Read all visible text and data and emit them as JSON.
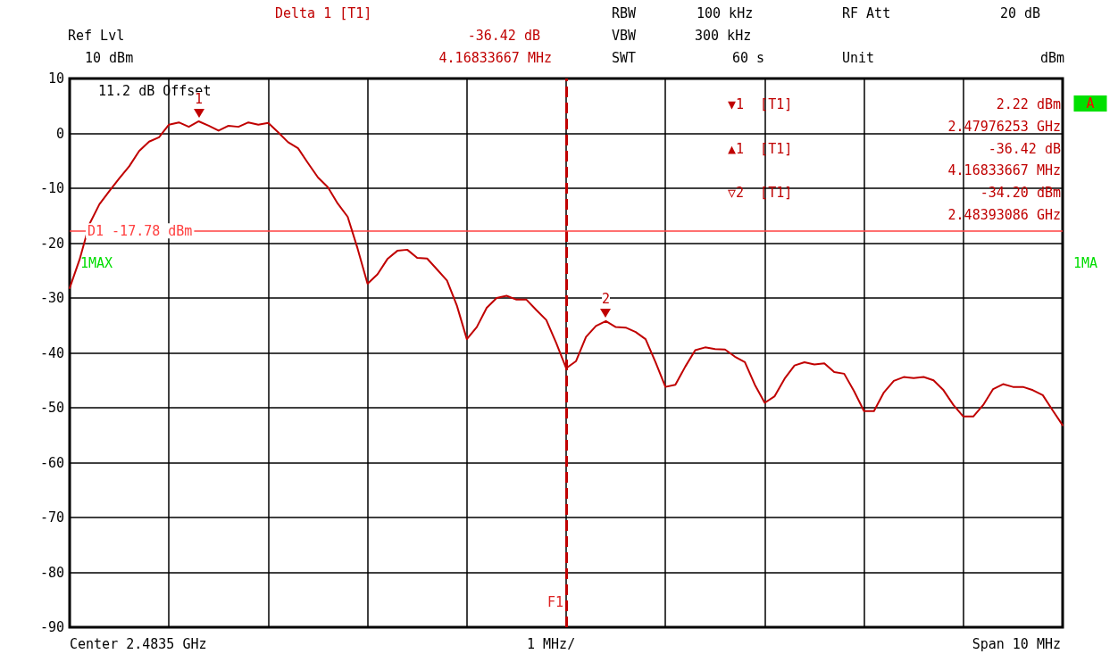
{
  "chart_data": {
    "type": "line",
    "annotations": [
      "Delta 1 [T1]",
      "-36.42 dB",
      "4.16833667 MHz",
      "RBW",
      "100 kHz",
      "RF Att",
      "20 dB",
      "Ref Lvl",
      "10 dBm",
      "VBW",
      "300 kHz",
      "SWT",
      "60 s",
      "Unit",
      "dBm",
      "11.2 dB Offset",
      "▼1  [T1]",
      "2.22 dBm",
      "2.47976253 GHz",
      "▲1  [T1]",
      "-36.42 dB",
      "4.16833667 MHz",
      "▽2  [T1]",
      "-34.20 dBm",
      "2.48393086 GHz",
      "1MAX",
      "1MA",
      "A",
      "Center 2.4835 GHz",
      "1 MHz/",
      "Span 10 MHz",
      "F1",
      {
        "text": "1",
        "y": 2.22
      },
      {
        "text": "2",
        "y": -34.2
      }
    ],
    "categories": [
      null,
      null,
      null,
      null,
      null,
      null,
      null,
      null,
      null,
      null,
      null,
      null,
      null,
      null,
      null,
      null,
      null,
      null,
      null,
      null,
      null,
      null,
      null,
      null,
      null,
      null,
      null,
      null,
      null,
      null,
      null,
      null,
      null,
      null,
      null,
      null,
      null,
      null,
      null,
      null,
      null,
      null,
      null,
      null,
      null,
      null,
      null,
      null,
      null,
      null,
      null,
      null,
      null,
      null,
      null,
      null,
      null,
      null,
      null,
      null,
      null,
      null,
      null,
      null,
      null,
      null,
      null,
      null,
      null,
      null,
      null,
      null,
      null,
      null,
      null,
      null,
      null,
      null,
      null,
      null,
      null,
      null,
      null,
      null,
      null,
      null,
      null,
      null,
      null,
      null,
      null,
      null,
      null,
      null,
      null,
      null,
      null,
      null,
      null,
      null,
      null
    ],
    "series": [
      {
        "color": "#c00000",
        "values": [
          -28.2,
          -23.0,
          -16.5,
          -12.9,
          -10.5,
          -8.2,
          -6.0,
          -3.2,
          -1.5,
          -0.7,
          1.6,
          2.0,
          1.2,
          2.2,
          1.4,
          0.5,
          1.4,
          1.2,
          2.0,
          1.6,
          1.9,
          0.2,
          -1.6,
          -2.7,
          -5.4,
          -8.0,
          -9.8,
          -12.8,
          -15.2,
          -21.0,
          -27.4,
          -25.7,
          -22.9,
          -21.4,
          -21.2,
          -22.7,
          -22.8,
          -24.8,
          -26.8,
          -31.4,
          -37.5,
          -35.3,
          -31.8,
          -30.0,
          -29.6,
          -30.3,
          -30.3,
          -32.2,
          -34.0,
          -38.2,
          -42.8,
          -41.5,
          -37.1,
          -35.1,
          -34.2,
          -35.3,
          -35.4,
          -36.2,
          -37.5,
          -41.7,
          -46.2,
          -45.8,
          -42.5,
          -39.5,
          -39.0,
          -39.3,
          -39.4,
          -40.7,
          -41.7,
          -45.8,
          -49.1,
          -47.9,
          -44.7,
          -42.3,
          -41.7,
          -42.1,
          -41.9,
          -43.5,
          -43.8,
          -47.0,
          -50.6,
          -50.6,
          -47.2,
          -45.1,
          -44.4,
          -44.6,
          -44.4,
          -45.0,
          -46.8,
          -49.5,
          -51.6,
          -51.6,
          -49.5,
          -46.6,
          -45.7,
          -46.2,
          -46.2,
          -46.8,
          -47.7,
          -50.5,
          -53.2
        ]
      }
    ],
    "ylim": [
      -90,
      10
    ],
    "yticks": [
      -90,
      -80,
      -70,
      -60,
      -50,
      -40,
      -30,
      -20,
      -10,
      0,
      10
    ],
    "tick_labels": "y",
    "ref_lines": [
      {
        "axis": "y",
        "value": -17.78,
        "label": "D1 -17.78 dBm",
        "color": "#ff4040"
      }
    ],
    "grid": true,
    "marker": "none",
    "line_style": "solid"
  }
}
